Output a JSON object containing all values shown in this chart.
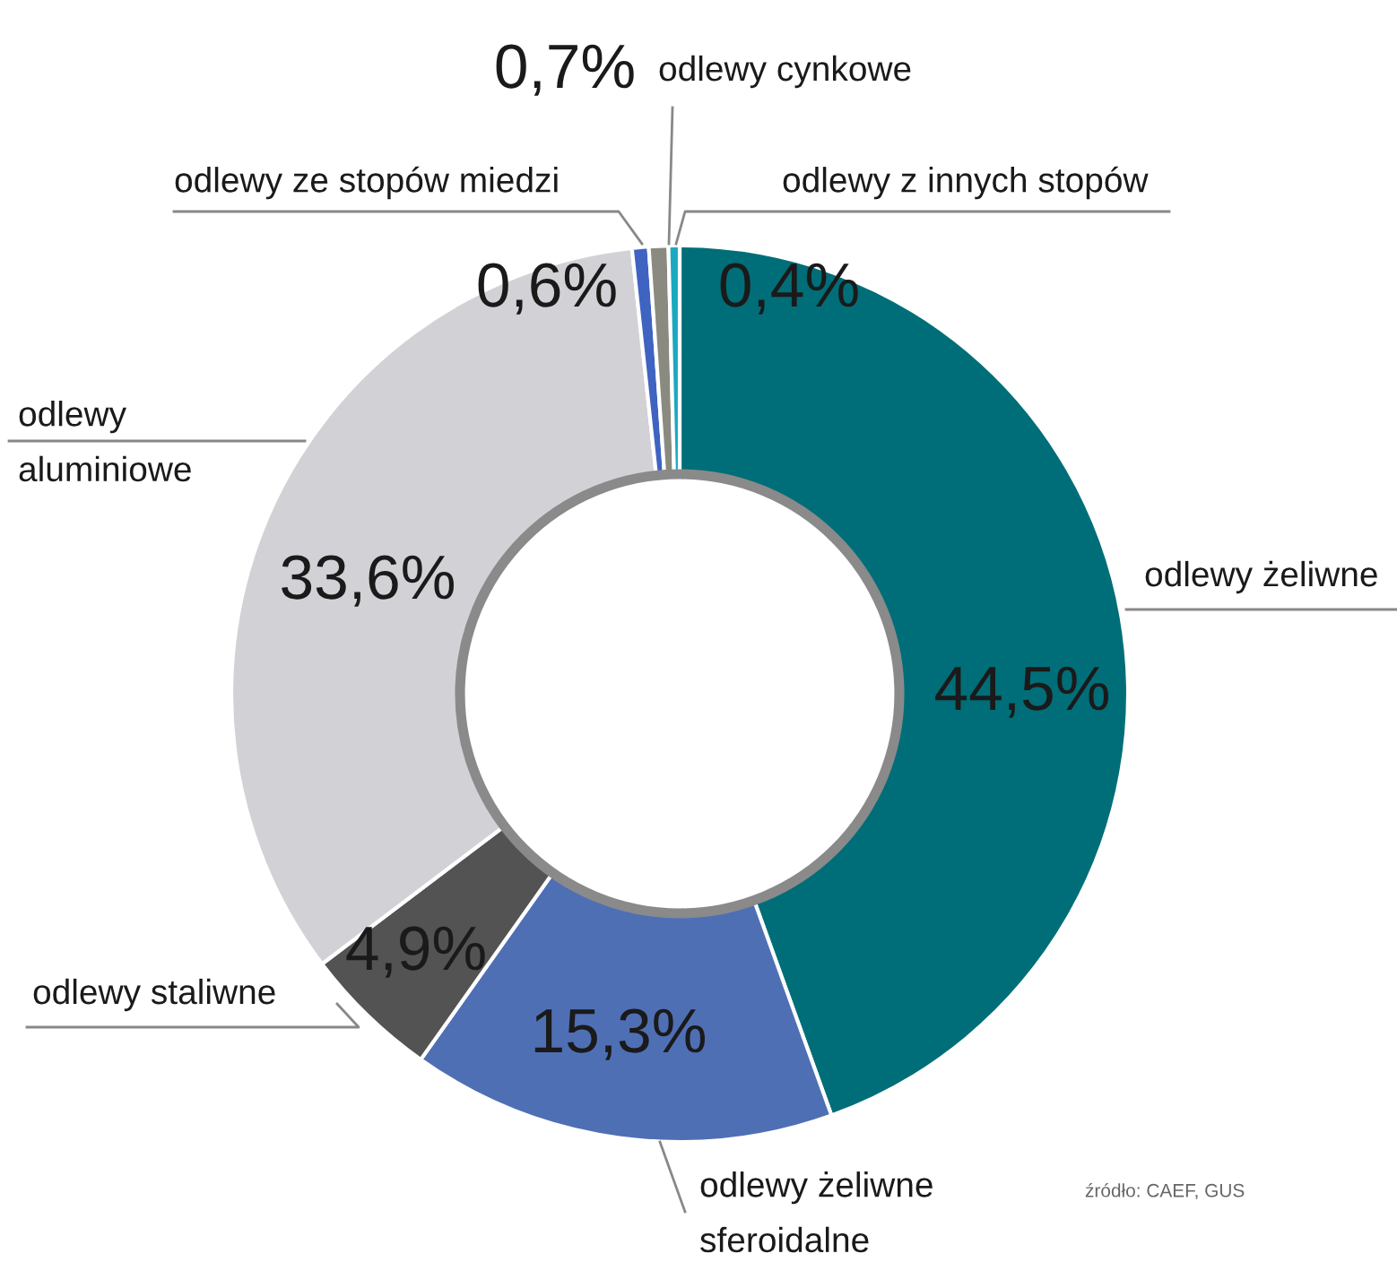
{
  "chart_data": {
    "type": "donut",
    "categories": [
      "odlewy żeliwne",
      "odlewy żeliwne\nsferoidalne",
      "odlewy staliwne",
      "odlewy\naluminiowe",
      "odlewy ze stopów miedzi",
      "odlewy cynkowe",
      "odlewy z innych stopów"
    ],
    "values": [
      44.5,
      15.3,
      4.9,
      33.6,
      0.6,
      0.7,
      0.4
    ],
    "colors": [
      "#006e78",
      "#4f6fb5",
      "#535353",
      "#d2d2d6",
      "#3f63c0",
      "#8a8a80",
      "#1aa9c0"
    ],
    "value_labels": [
      "44,5%",
      "15,3%",
      "4,9%",
      "33,6%",
      "0,6%",
      "0,7%",
      "0,4%"
    ],
    "annotations": [
      "źródło: CAEF, GUS"
    ]
  }
}
